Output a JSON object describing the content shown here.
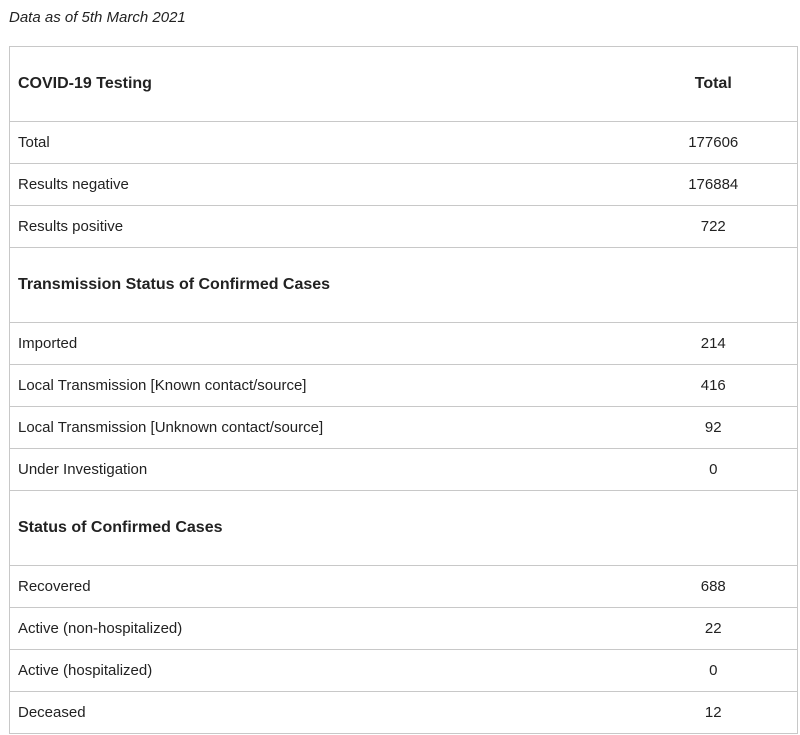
{
  "caption": "Data as of 5th March 2021",
  "table": {
    "header": {
      "label": "COVID-19 Testing",
      "value": "Total"
    },
    "testing_rows": [
      {
        "label": "Total",
        "value": "177606"
      },
      {
        "label": "Results negative",
        "value": "176884"
      },
      {
        "label": "Results positive",
        "value": "722"
      }
    ],
    "transmission_section": "Transmission Status of Confirmed Cases",
    "transmission_rows": [
      {
        "label": "Imported",
        "value": "214"
      },
      {
        "label": "Local Transmission [Known contact/source]",
        "value": "416"
      },
      {
        "label": "Local Transmission [Unknown contact/source]",
        "value": "92"
      },
      {
        "label": "Under Investigation",
        "value": "0"
      }
    ],
    "status_section": "Status of Confirmed Cases",
    "status_rows": [
      {
        "label": "Recovered",
        "value": "688"
      },
      {
        "label": "Active (non-hospitalized)",
        "value": "22"
      },
      {
        "label": "Active (hospitalized)",
        "value": "0"
      },
      {
        "label": "Deceased",
        "value": "12"
      }
    ]
  }
}
